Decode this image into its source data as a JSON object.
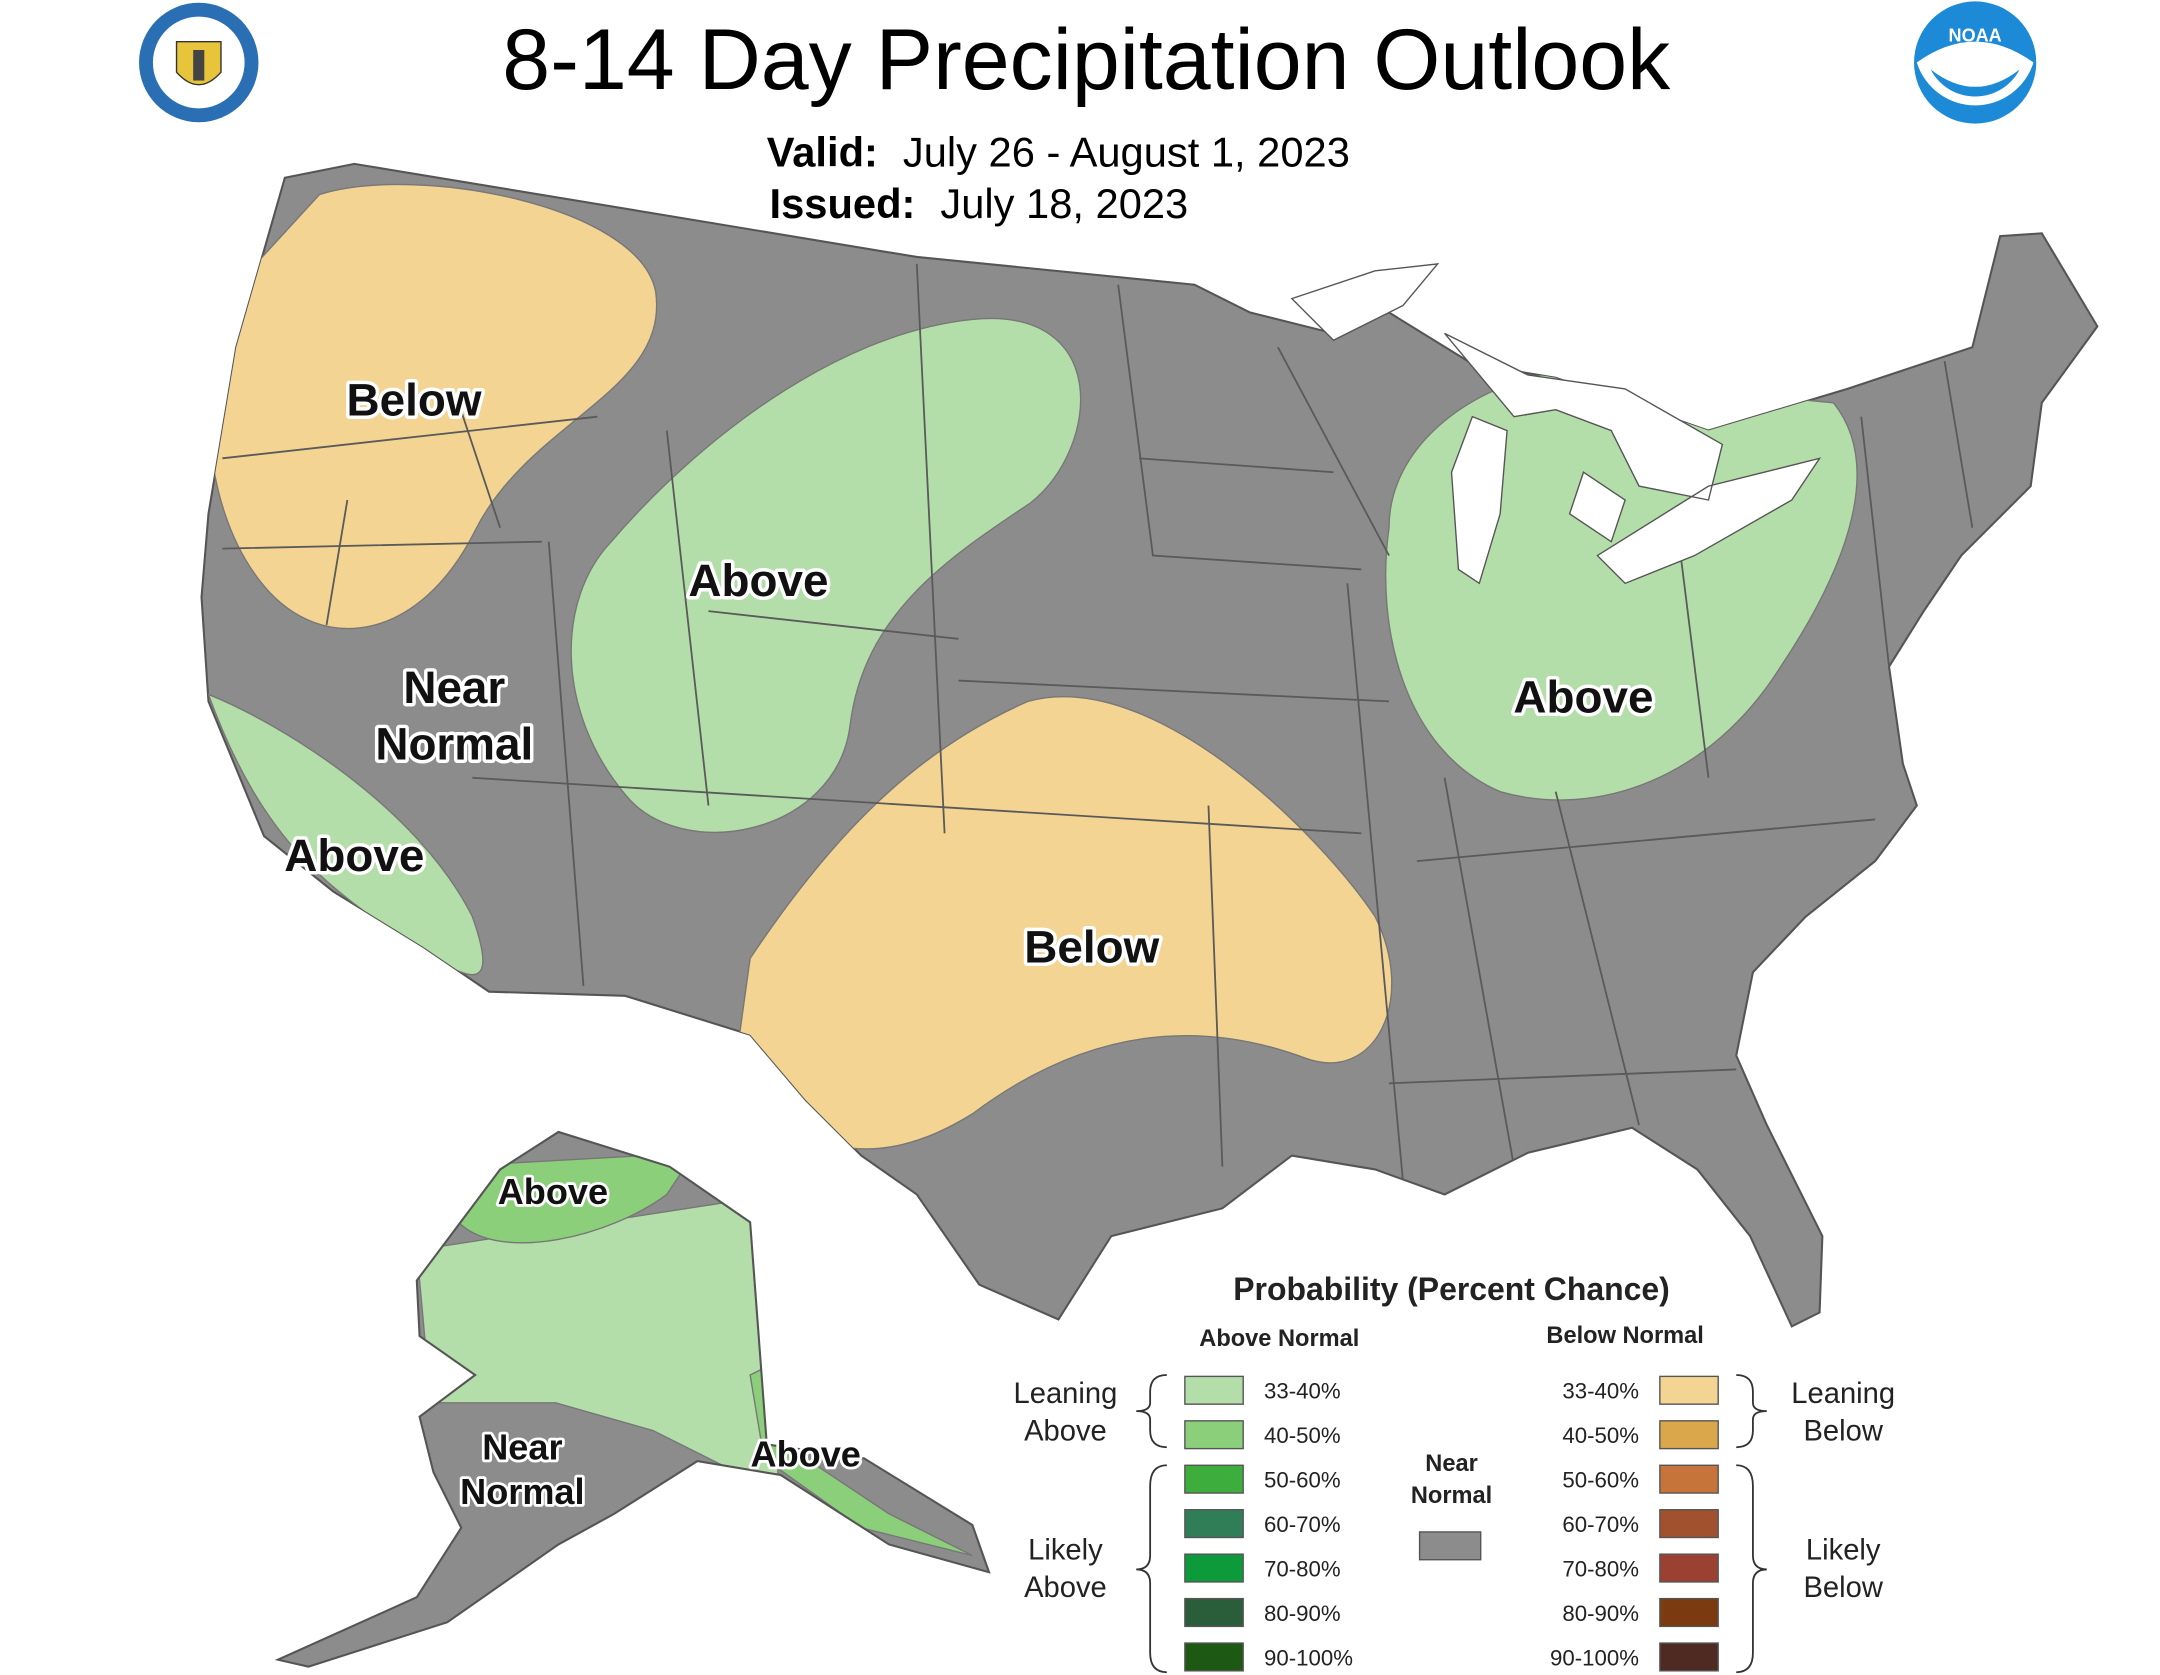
{
  "header": {
    "title": "8-14 Day Precipitation Outlook",
    "valid_label": "Valid:",
    "valid": "July 26 - August 1, 2023",
    "issued_label": "Issued:",
    "issued": "July 18, 2023"
  },
  "map_labels": [
    {
      "lines": [
        "Below"
      ]
    },
    {
      "lines": [
        "Above"
      ]
    },
    {
      "lines": [
        "Near",
        "Normal"
      ]
    },
    {
      "lines": [
        "Above"
      ]
    },
    {
      "lines": [
        "Below"
      ]
    },
    {
      "lines": [
        "Above"
      ]
    },
    {
      "lines": [
        "Above"
      ]
    },
    {
      "lines": [
        "Near",
        "Normal"
      ]
    },
    {
      "lines": [
        "Above"
      ]
    }
  ],
  "legend": {
    "title": "Probability (Percent Chance)",
    "above_heading": "Above Normal",
    "below_heading": "Below Normal",
    "above": [
      {
        "label": "33-40%",
        "color": "#b4dea9"
      },
      {
        "label": "40-50%",
        "color": "#8ccf7b"
      },
      {
        "label": "50-60%",
        "color": "#3dae3e"
      },
      {
        "label": "60-70%",
        "color": "#2f7e57"
      },
      {
        "label": "70-80%",
        "color": "#0c9a3b"
      },
      {
        "label": "80-90%",
        "color": "#2a5e3b"
      },
      {
        "label": "90-100%",
        "color": "#1e5914"
      }
    ],
    "below": [
      {
        "label": "33-40%",
        "color": "#f3d493"
      },
      {
        "label": "40-50%",
        "color": "#daa84b"
      },
      {
        "label": "50-60%",
        "color": "#c7743a"
      },
      {
        "label": "60-70%",
        "color": "#a2512e"
      },
      {
        "label": "70-80%",
        "color": "#9b4131"
      },
      {
        "label": "80-90%",
        "color": "#7b3a0f"
      },
      {
        "label": "90-100%",
        "color": "#4e2a23"
      }
    ],
    "near_normal": {
      "lines": [
        "Near",
        "Normal"
      ],
      "color": "#8c8c8c"
    },
    "leaning_above": [
      "Leaning",
      "Above"
    ],
    "likely_above": [
      "Likely",
      "Above"
    ],
    "leaning_below": [
      "Leaning",
      "Below"
    ],
    "likely_below": [
      "Likely",
      "Below"
    ]
  }
}
